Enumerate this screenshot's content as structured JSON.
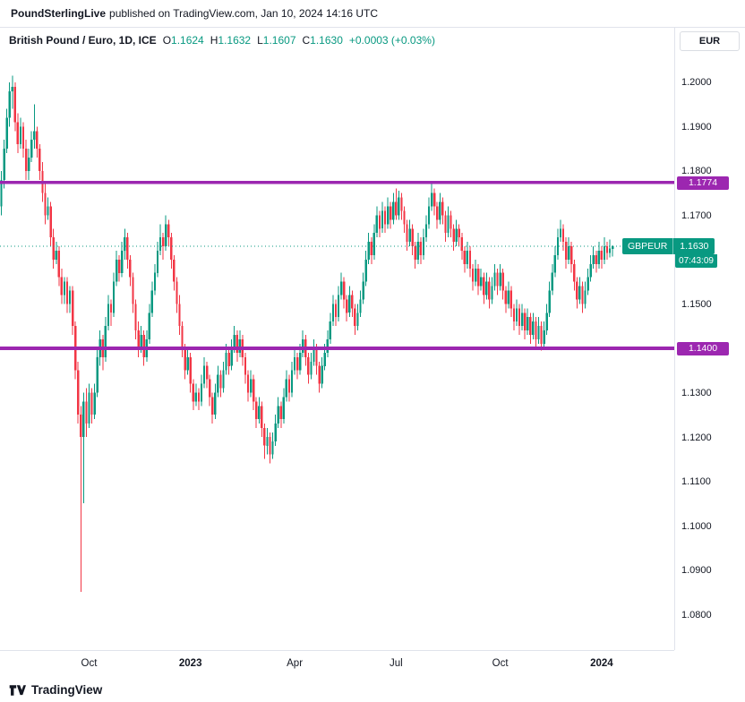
{
  "banner": {
    "brand": "PoundSterlingLive",
    "rest": "published on TradingView.com, Jan 10, 2024 14:16 UTC"
  },
  "legend": {
    "symbol": "British Pound / Euro, 1D, ICE",
    "ohlc": [
      {
        "label": "O",
        "value": "1.1624"
      },
      {
        "label": "H",
        "value": "1.1632"
      },
      {
        "label": "L",
        "value": "1.1607"
      },
      {
        "label": "C",
        "value": "1.1630"
      }
    ],
    "change": "+0.0003 (+0.03%)"
  },
  "axis": {
    "currency": "EUR"
  },
  "price_label": {
    "symbol": "GBPEUR",
    "price": "1.1630",
    "countdown": "07:43:09"
  },
  "footer": {
    "brand": "TradingView"
  },
  "chart_data": {
    "type": "candlestick",
    "title": "British Pound / Euro, 1D, ICE",
    "symbol": "GBPEUR",
    "timeframe": "1D",
    "exchange": "ICE",
    "ohlc_header": {
      "open": 1.1624,
      "high": 1.1632,
      "low": 1.1607,
      "close": 1.163,
      "change": 0.0003,
      "change_pct": 0.03
    },
    "last_price": 1.163,
    "colors": {
      "up": "#089981",
      "down": "#F23645",
      "level": "#9C27B0",
      "axis_text": "#131722"
    },
    "price_axis": {
      "min": 1.0719,
      "max": 1.2123,
      "ticks": [
        1.2,
        1.19,
        1.18,
        1.17,
        1.16,
        1.15,
        1.14,
        1.13,
        1.12,
        1.11,
        1.1,
        1.09,
        1.08
      ]
    },
    "levels": [
      {
        "price": 1.1774,
        "label": "1.1774",
        "color": "#9C27B0"
      },
      {
        "price": 1.14,
        "label": "1.1400",
        "color": "#9C27B0"
      }
    ],
    "total_slots": 246,
    "time_axis": [
      {
        "label": "Oct",
        "index": 32,
        "major": false
      },
      {
        "label": "2023",
        "index": 69,
        "major": true
      },
      {
        "label": "Apr",
        "index": 107,
        "major": false
      },
      {
        "label": "Jul",
        "index": 144,
        "major": false
      },
      {
        "label": "Oct",
        "index": 182,
        "major": false
      },
      {
        "label": "2024",
        "index": 219,
        "major": true
      }
    ],
    "candles": [
      [
        1.172,
        1.18,
        1.17,
        1.178
      ],
      [
        1.178,
        1.187,
        1.176,
        1.185
      ],
      [
        1.185,
        1.194,
        1.184,
        1.192
      ],
      [
        1.192,
        1.2,
        1.19,
        1.198
      ],
      [
        1.198,
        1.2015,
        1.194,
        1.199
      ],
      [
        1.199,
        1.2,
        1.189,
        1.191
      ],
      [
        1.191,
        1.193,
        1.184,
        1.186
      ],
      [
        1.186,
        1.192,
        1.185,
        1.19
      ],
      [
        1.19,
        1.191,
        1.183,
        1.185
      ],
      [
        1.185,
        1.187,
        1.178,
        1.18
      ],
      [
        1.18,
        1.185,
        1.178,
        1.183
      ],
      [
        1.183,
        1.189,
        1.182,
        1.187
      ],
      [
        1.187,
        1.195,
        1.185,
        1.189
      ],
      [
        1.189,
        1.19,
        1.183,
        1.185
      ],
      [
        1.185,
        1.186,
        1.178,
        1.18
      ],
      [
        1.18,
        1.182,
        1.173,
        1.175
      ],
      [
        1.175,
        1.177,
        1.168,
        1.17
      ],
      [
        1.17,
        1.174,
        1.169,
        1.172
      ],
      [
        1.172,
        1.173,
        1.163,
        1.165
      ],
      [
        1.165,
        1.167,
        1.158,
        1.16
      ],
      [
        1.16,
        1.164,
        1.159,
        1.162
      ],
      [
        1.162,
        1.163,
        1.154,
        1.156
      ],
      [
        1.156,
        1.158,
        1.15,
        1.152
      ],
      [
        1.152,
        1.156,
        1.15,
        1.155
      ],
      [
        1.155,
        1.156,
        1.148,
        1.15
      ],
      [
        1.15,
        1.154,
        1.148,
        1.153
      ],
      [
        1.153,
        1.154,
        1.143,
        1.145
      ],
      [
        1.145,
        1.146,
        1.133,
        1.135
      ],
      [
        1.135,
        1.137,
        1.123,
        1.125
      ],
      [
        1.125,
        1.127,
        1.085,
        1.12
      ],
      [
        1.12,
        1.13,
        1.105,
        1.128
      ],
      [
        1.128,
        1.131,
        1.12,
        1.123
      ],
      [
        1.123,
        1.132,
        1.122,
        1.13
      ],
      [
        1.13,
        1.131,
        1.123,
        1.125
      ],
      [
        1.125,
        1.132,
        1.124,
        1.13
      ],
      [
        1.13,
        1.14,
        1.129,
        1.138
      ],
      [
        1.138,
        1.144,
        1.136,
        1.142
      ],
      [
        1.142,
        1.143,
        1.135,
        1.138
      ],
      [
        1.138,
        1.147,
        1.137,
        1.145
      ],
      [
        1.145,
        1.152,
        1.144,
        1.15
      ],
      [
        1.15,
        1.151,
        1.145,
        1.148
      ],
      [
        1.148,
        1.157,
        1.147,
        1.155
      ],
      [
        1.155,
        1.162,
        1.154,
        1.16
      ],
      [
        1.16,
        1.161,
        1.155,
        1.157
      ],
      [
        1.157,
        1.164,
        1.156,
        1.162
      ],
      [
        1.162,
        1.167,
        1.16,
        1.165
      ],
      [
        1.165,
        1.166,
        1.158,
        1.16
      ],
      [
        1.16,
        1.161,
        1.154,
        1.156
      ],
      [
        1.156,
        1.157,
        1.148,
        1.15
      ],
      [
        1.15,
        1.151,
        1.142,
        1.144
      ],
      [
        1.144,
        1.146,
        1.138,
        1.14
      ],
      [
        1.14,
        1.145,
        1.139,
        1.143
      ],
      [
        1.143,
        1.144,
        1.136,
        1.138
      ],
      [
        1.138,
        1.144,
        1.137,
        1.142
      ],
      [
        1.142,
        1.15,
        1.141,
        1.148
      ],
      [
        1.148,
        1.155,
        1.147,
        1.153
      ],
      [
        1.153,
        1.159,
        1.152,
        1.157
      ],
      [
        1.157,
        1.164,
        1.156,
        1.162
      ],
      [
        1.162,
        1.168,
        1.161,
        1.165
      ],
      [
        1.165,
        1.166,
        1.16,
        1.163
      ],
      [
        1.163,
        1.17,
        1.162,
        1.168
      ],
      [
        1.168,
        1.169,
        1.163,
        1.165
      ],
      [
        1.165,
        1.166,
        1.158,
        1.16
      ],
      [
        1.16,
        1.161,
        1.153,
        1.155
      ],
      [
        1.155,
        1.156,
        1.148,
        1.15
      ],
      [
        1.15,
        1.152,
        1.143,
        1.145
      ],
      [
        1.145,
        1.146,
        1.138,
        1.14
      ],
      [
        1.14,
        1.141,
        1.133,
        1.135
      ],
      [
        1.135,
        1.14,
        1.134,
        1.138
      ],
      [
        1.138,
        1.139,
        1.13,
        1.132
      ],
      [
        1.132,
        1.133,
        1.126,
        1.128
      ],
      [
        1.128,
        1.132,
        1.127,
        1.13
      ],
      [
        1.13,
        1.131,
        1.126,
        1.128
      ],
      [
        1.128,
        1.134,
        1.127,
        1.132
      ],
      [
        1.132,
        1.138,
        1.131,
        1.136
      ],
      [
        1.136,
        1.137,
        1.131,
        1.133
      ],
      [
        1.133,
        1.134,
        1.127,
        1.129
      ],
      [
        1.129,
        1.13,
        1.123,
        1.125
      ],
      [
        1.125,
        1.132,
        1.124,
        1.13
      ],
      [
        1.13,
        1.136,
        1.129,
        1.134
      ],
      [
        1.134,
        1.135,
        1.129,
        1.131
      ],
      [
        1.131,
        1.137,
        1.13,
        1.135
      ],
      [
        1.135,
        1.141,
        1.134,
        1.139
      ],
      [
        1.139,
        1.14,
        1.134,
        1.136
      ],
      [
        1.136,
        1.142,
        1.135,
        1.14
      ],
      [
        1.14,
        1.145,
        1.139,
        1.143
      ],
      [
        1.143,
        1.144,
        1.137,
        1.139
      ],
      [
        1.139,
        1.144,
        1.138,
        1.142
      ],
      [
        1.142,
        1.143,
        1.136,
        1.138
      ],
      [
        1.138,
        1.139,
        1.132,
        1.134
      ],
      [
        1.134,
        1.135,
        1.128,
        1.13
      ],
      [
        1.13,
        1.135,
        1.129,
        1.133
      ],
      [
        1.133,
        1.134,
        1.126,
        1.128
      ],
      [
        1.128,
        1.129,
        1.122,
        1.124
      ],
      [
        1.124,
        1.129,
        1.123,
        1.127
      ],
      [
        1.127,
        1.128,
        1.12,
        1.122
      ],
      [
        1.122,
        1.123,
        1.115,
        1.118
      ],
      [
        1.118,
        1.122,
        1.116,
        1.12
      ],
      [
        1.12,
        1.121,
        1.114,
        1.116
      ],
      [
        1.116,
        1.121,
        1.115,
        1.119
      ],
      [
        1.119,
        1.125,
        1.118,
        1.123
      ],
      [
        1.123,
        1.129,
        1.122,
        1.127
      ],
      [
        1.127,
        1.128,
        1.122,
        1.124
      ],
      [
        1.124,
        1.131,
        1.123,
        1.129
      ],
      [
        1.129,
        1.135,
        1.128,
        1.133
      ],
      [
        1.133,
        1.134,
        1.128,
        1.13
      ],
      [
        1.13,
        1.137,
        1.129,
        1.135
      ],
      [
        1.135,
        1.14,
        1.134,
        1.138
      ],
      [
        1.138,
        1.139,
        1.133,
        1.135
      ],
      [
        1.135,
        1.141,
        1.134,
        1.139
      ],
      [
        1.139,
        1.144,
        1.138,
        1.142
      ],
      [
        1.142,
        1.143,
        1.136,
        1.138
      ],
      [
        1.138,
        1.139,
        1.132,
        1.134
      ],
      [
        1.134,
        1.139,
        1.133,
        1.137
      ],
      [
        1.137,
        1.142,
        1.136,
        1.14
      ],
      [
        1.14,
        1.141,
        1.134,
        1.136
      ],
      [
        1.136,
        1.137,
        1.13,
        1.132
      ],
      [
        1.132,
        1.138,
        1.131,
        1.136
      ],
      [
        1.136,
        1.141,
        1.135,
        1.139
      ],
      [
        1.139,
        1.144,
        1.138,
        1.142
      ],
      [
        1.142,
        1.148,
        1.141,
        1.146
      ],
      [
        1.146,
        1.152,
        1.145,
        1.15
      ],
      [
        1.15,
        1.151,
        1.145,
        1.147
      ],
      [
        1.147,
        1.154,
        1.146,
        1.152
      ],
      [
        1.152,
        1.157,
        1.151,
        1.155
      ],
      [
        1.155,
        1.156,
        1.149,
        1.151
      ],
      [
        1.151,
        1.152,
        1.146,
        1.148
      ],
      [
        1.148,
        1.154,
        1.147,
        1.152
      ],
      [
        1.152,
        1.153,
        1.147,
        1.149
      ],
      [
        1.149,
        1.15,
        1.143,
        1.145
      ],
      [
        1.145,
        1.15,
        1.144,
        1.148
      ],
      [
        1.148,
        1.153,
        1.147,
        1.151
      ],
      [
        1.151,
        1.157,
        1.15,
        1.155
      ],
      [
        1.155,
        1.162,
        1.154,
        1.16
      ],
      [
        1.16,
        1.166,
        1.159,
        1.164
      ],
      [
        1.164,
        1.165,
        1.159,
        1.161
      ],
      [
        1.161,
        1.168,
        1.16,
        1.166
      ],
      [
        1.166,
        1.172,
        1.165,
        1.17
      ],
      [
        1.17,
        1.171,
        1.165,
        1.167
      ],
      [
        1.167,
        1.173,
        1.166,
        1.171
      ],
      [
        1.171,
        1.172,
        1.166,
        1.168
      ],
      [
        1.168,
        1.174,
        1.167,
        1.172
      ],
      [
        1.172,
        1.173,
        1.167,
        1.169
      ],
      [
        1.169,
        1.175,
        1.168,
        1.173
      ],
      [
        1.173,
        1.176,
        1.169,
        1.17
      ],
      [
        1.17,
        1.1755,
        1.169,
        1.174
      ],
      [
        1.174,
        1.175,
        1.169,
        1.171
      ],
      [
        1.171,
        1.172,
        1.166,
        1.168
      ],
      [
        1.168,
        1.169,
        1.162,
        1.164
      ],
      [
        1.164,
        1.169,
        1.163,
        1.167
      ],
      [
        1.167,
        1.168,
        1.161,
        1.163
      ],
      [
        1.163,
        1.164,
        1.158,
        1.16
      ],
      [
        1.16,
        1.166,
        1.159,
        1.164
      ],
      [
        1.164,
        1.165,
        1.159,
        1.161
      ],
      [
        1.161,
        1.167,
        1.16,
        1.165
      ],
      [
        1.165,
        1.17,
        1.164,
        1.168
      ],
      [
        1.168,
        1.174,
        1.167,
        1.172
      ],
      [
        1.172,
        1.1774,
        1.171,
        1.175
      ],
      [
        1.175,
        1.176,
        1.17,
        1.172
      ],
      [
        1.172,
        1.173,
        1.167,
        1.169
      ],
      [
        1.169,
        1.175,
        1.168,
        1.173
      ],
      [
        1.173,
        1.174,
        1.168,
        1.17
      ],
      [
        1.17,
        1.171,
        1.164,
        1.166
      ],
      [
        1.166,
        1.172,
        1.165,
        1.17
      ],
      [
        1.17,
        1.171,
        1.165,
        1.167
      ],
      [
        1.167,
        1.168,
        1.162,
        1.164
      ],
      [
        1.164,
        1.169,
        1.163,
        1.167
      ],
      [
        1.167,
        1.168,
        1.163,
        1.165
      ],
      [
        1.165,
        1.166,
        1.16,
        1.162
      ],
      [
        1.162,
        1.163,
        1.157,
        1.159
      ],
      [
        1.159,
        1.164,
        1.158,
        1.162
      ],
      [
        1.162,
        1.163,
        1.156,
        1.158
      ],
      [
        1.158,
        1.159,
        1.153,
        1.155
      ],
      [
        1.155,
        1.16,
        1.154,
        1.158
      ],
      [
        1.158,
        1.159,
        1.152,
        1.154
      ],
      [
        1.154,
        1.158,
        1.153,
        1.156
      ],
      [
        1.156,
        1.157,
        1.15,
        1.152
      ],
      [
        1.152,
        1.157,
        1.151,
        1.155
      ],
      [
        1.155,
        1.156,
        1.149,
        1.151
      ],
      [
        1.151,
        1.156,
        1.15,
        1.154
      ],
      [
        1.154,
        1.159,
        1.153,
        1.157
      ],
      [
        1.157,
        1.158,
        1.152,
        1.154
      ],
      [
        1.154,
        1.159,
        1.153,
        1.157
      ],
      [
        1.157,
        1.158,
        1.151,
        1.153
      ],
      [
        1.153,
        1.154,
        1.148,
        1.15
      ],
      [
        1.15,
        1.155,
        1.149,
        1.153
      ],
      [
        1.153,
        1.154,
        1.147,
        1.149
      ],
      [
        1.149,
        1.15,
        1.144,
        1.146
      ],
      [
        1.146,
        1.151,
        1.145,
        1.149
      ],
      [
        1.149,
        1.15,
        1.143,
        1.145
      ],
      [
        1.145,
        1.15,
        1.144,
        1.148
      ],
      [
        1.148,
        1.149,
        1.142,
        1.144
      ],
      [
        1.144,
        1.149,
        1.143,
        1.147
      ],
      [
        1.147,
        1.148,
        1.141,
        1.143
      ],
      [
        1.143,
        1.148,
        1.142,
        1.146
      ],
      [
        1.146,
        1.147,
        1.14,
        1.142
      ],
      [
        1.142,
        1.147,
        1.141,
        1.145
      ],
      [
        1.145,
        1.146,
        1.1395,
        1.141
      ],
      [
        1.141,
        1.146,
        1.14,
        1.144
      ],
      [
        1.144,
        1.15,
        1.143,
        1.148
      ],
      [
        1.148,
        1.155,
        1.147,
        1.153
      ],
      [
        1.153,
        1.159,
        1.152,
        1.157
      ],
      [
        1.157,
        1.163,
        1.156,
        1.161
      ],
      [
        1.161,
        1.167,
        1.16,
        1.165
      ],
      [
        1.165,
        1.169,
        1.164,
        1.167
      ],
      [
        1.167,
        1.168,
        1.162,
        1.164
      ],
      [
        1.164,
        1.165,
        1.158,
        1.16
      ],
      [
        1.16,
        1.165,
        1.159,
        1.163
      ],
      [
        1.163,
        1.164,
        1.157,
        1.159
      ],
      [
        1.159,
        1.16,
        1.153,
        1.155
      ],
      [
        1.155,
        1.156,
        1.149,
        1.151
      ],
      [
        1.151,
        1.156,
        1.15,
        1.154
      ],
      [
        1.154,
        1.155,
        1.148,
        1.15
      ],
      [
        1.15,
        1.155,
        1.149,
        1.153
      ],
      [
        1.153,
        1.158,
        1.152,
        1.156
      ],
      [
        1.156,
        1.161,
        1.155,
        1.159
      ],
      [
        1.159,
        1.163,
        1.158,
        1.161
      ],
      [
        1.161,
        1.162,
        1.157,
        1.159
      ],
      [
        1.159,
        1.164,
        1.158,
        1.162
      ],
      [
        1.162,
        1.163,
        1.158,
        1.16
      ],
      [
        1.16,
        1.165,
        1.159,
        1.163
      ],
      [
        1.163,
        1.164,
        1.16,
        1.1615
      ],
      [
        1.1615,
        1.1645,
        1.1605,
        1.1625
      ],
      [
        1.1624,
        1.1632,
        1.1607,
        1.163
      ]
    ]
  }
}
